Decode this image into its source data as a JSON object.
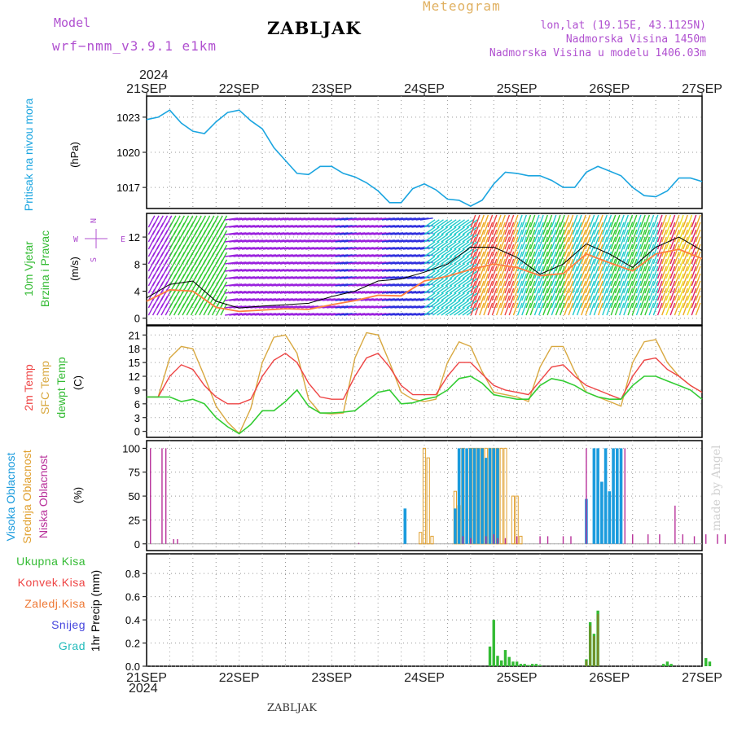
{
  "header": {
    "model_label": "Model",
    "model_name": "wrf−nmm_v3.9.1  e1km",
    "title": "Meteogram",
    "station": "ZABLJAK",
    "coords": "lon,lat (19.15E, 43.1125N)",
    "elevation": "Nadmorska Visina 1450m",
    "model_elevation": "Nadmorska Visina u modelu 1406.03m",
    "year_top": "2024",
    "year_bottom": "2024"
  },
  "footer": {
    "station": "ZABLJAK",
    "credit": "made by Angel"
  },
  "colors": {
    "pressure": "#1ba5e0",
    "temp2m": "#ee4444",
    "sfc": "#d8a840",
    "dew": "#33cc33",
    "high_cloud": "#1a9bdd",
    "mid_cloud": "#e0a030",
    "low_cloud": "#b8309a",
    "precip_total": "#33bb33",
    "precip_conv": "#ee4444",
    "freezing": "#ee7733",
    "snow": "#4444dd",
    "hail": "#22bbbb",
    "wind_speed": "#ff7f3f",
    "gust": "#000000",
    "axis_label": "#000000"
  },
  "chart_data": [
    {
      "type": "line",
      "panel": "pressure",
      "ylabel": "Pritisak na nivou mora",
      "unit": "(hPa)",
      "yticks": [
        1017,
        1020,
        1023
      ],
      "ylim": [
        1015.2,
        1024.8
      ],
      "x_hours": [
        0,
        3,
        6,
        9,
        12,
        15,
        18,
        21,
        24,
        27,
        30,
        33,
        36,
        39,
        42,
        45,
        48,
        51,
        54,
        57,
        60,
        63,
        66,
        69,
        72,
        75,
        78,
        81,
        84,
        87,
        90,
        93,
        96,
        99,
        102,
        105,
        108,
        111,
        114,
        117,
        120,
        123,
        126,
        129,
        132,
        135,
        138,
        141,
        144
      ],
      "series": [
        {
          "key": "pressure",
          "values": [
            1022.8,
            1023.0,
            1023.6,
            1022.5,
            1021.8,
            1021.6,
            1022.6,
            1023.4,
            1023.6,
            1022.7,
            1022.0,
            1020.4,
            1019.3,
            1018.2,
            1018.1,
            1018.8,
            1018.8,
            1018.2,
            1017.9,
            1017.4,
            1016.7,
            1015.7,
            1015.7,
            1016.9,
            1017.3,
            1016.8,
            1016.0,
            1015.9,
            1015.4,
            1015.9,
            1017.3,
            1018.3,
            1018.2,
            1018.0,
            1018.0,
            1017.6,
            1017.0,
            1017.0,
            1018.3,
            1018.8,
            1018.4,
            1018.0,
            1017.0,
            1016.3,
            1016.2,
            1016.7,
            1017.8,
            1017.8,
            1017.5
          ]
        }
      ]
    },
    {
      "type": "barbs",
      "panel": "wind",
      "ylabel": "10m Vjetar Brzina i Pravac",
      "unit": "(m/s)",
      "compass": {
        "n": "N",
        "s": "S",
        "e": "E",
        "w": "W"
      },
      "yticks": [
        0,
        4,
        8,
        12
      ],
      "ylim": [
        -1,
        15.5
      ],
      "x_hours": [
        0,
        6,
        12,
        18,
        24,
        30,
        36,
        42,
        48,
        54,
        60,
        66,
        72,
        78,
        84,
        90,
        96,
        102,
        108,
        114,
        120,
        126,
        132,
        138,
        144
      ],
      "series": [
        {
          "key": "wind_speed",
          "values": [
            2.5,
            4.2,
            4.0,
            1.6,
            1.0,
            1.2,
            1.4,
            1.3,
            2.0,
            2.6,
            3.4,
            3.3,
            5.5,
            6.2,
            7.2,
            8.0,
            7.5,
            6.3,
            6.6,
            9.5,
            8.2,
            7.0,
            9.5,
            10.2,
            8.8
          ]
        },
        {
          "key": "gust",
          "values": [
            3.0,
            5.0,
            5.5,
            2.5,
            1.5,
            1.8,
            2.0,
            2.2,
            3.2,
            4.0,
            5.5,
            5.8,
            6.8,
            8.0,
            10.5,
            10.5,
            9.0,
            6.5,
            8.0,
            11.0,
            9.5,
            7.5,
            10.5,
            12.0,
            10.0
          ]
        }
      ],
      "barb_bands": [
        "#9a22dd",
        "#3030dd",
        "#22aa66",
        "#22cccc",
        "#33cc33",
        "#ee4444",
        "#ff8844",
        "#eeaa22",
        "#eedd22",
        "#dd2266"
      ]
    },
    {
      "type": "line",
      "panel": "temperature",
      "ylabels": [
        "2m Temp",
        "SFC Temp",
        "dewpt Temp"
      ],
      "unit": "(C)",
      "yticks": [
        0,
        3,
        6,
        9,
        12,
        15,
        18,
        21
      ],
      "ylim": [
        -1.3,
        23
      ],
      "x_hours": [
        0,
        3,
        6,
        9,
        12,
        15,
        18,
        21,
        24,
        27,
        30,
        33,
        36,
        39,
        42,
        45,
        48,
        51,
        54,
        57,
        60,
        63,
        66,
        69,
        72,
        75,
        78,
        81,
        84,
        87,
        90,
        93,
        96,
        99,
        102,
        105,
        108,
        111,
        114,
        117,
        120,
        123,
        126,
        129,
        132,
        135,
        138,
        141,
        144
      ],
      "series": [
        {
          "key": "temp2m",
          "values": [
            7.5,
            7.5,
            12.0,
            14.5,
            13.5,
            10.0,
            7.5,
            6.0,
            6.0,
            7.0,
            12.0,
            15.5,
            17.0,
            15.0,
            10.5,
            7.5,
            7.0,
            7.0,
            12.0,
            16.0,
            17.0,
            14.0,
            10.0,
            8.0,
            8.0,
            8.0,
            12.0,
            15.0,
            15.0,
            12.5,
            10.0,
            9.0,
            8.5,
            8.0,
            11.0,
            14.0,
            14.5,
            12.0,
            10.0,
            9.0,
            8.0,
            7.0,
            12.0,
            15.5,
            16.0,
            13.5,
            12.0,
            10.0,
            8.5
          ]
        },
        {
          "key": "sfc",
          "values": [
            7.5,
            7.5,
            16.0,
            18.5,
            18.0,
            12.0,
            5.5,
            2.0,
            -0.5,
            5.0,
            15.0,
            20.5,
            21.0,
            17.0,
            7.0,
            4.0,
            3.8,
            4.0,
            16.0,
            21.5,
            21.0,
            15.0,
            8.5,
            7.0,
            6.5,
            7.0,
            15.0,
            19.5,
            18.5,
            13.0,
            8.5,
            8.0,
            7.5,
            6.5,
            14.0,
            18.5,
            18.5,
            13.0,
            8.5,
            7.5,
            6.5,
            5.5,
            15.0,
            19.5,
            20.0,
            15.0,
            12.0,
            10.0,
            8.5
          ]
        },
        {
          "key": "dew",
          "values": [
            7.5,
            7.5,
            7.5,
            6.5,
            7.0,
            6.0,
            3.0,
            1.0,
            -0.5,
            1.5,
            4.5,
            4.5,
            6.5,
            9.0,
            5.5,
            4.0,
            4.0,
            4.2,
            4.5,
            6.5,
            8.5,
            9.0,
            6.0,
            6.2,
            7.0,
            7.5,
            9.0,
            11.5,
            12.0,
            10.5,
            8.0,
            7.5,
            7.0,
            7.0,
            10.0,
            11.5,
            11.0,
            10.0,
            8.5,
            7.5,
            7.0,
            7.0,
            10.0,
            12.0,
            12.0,
            11.0,
            10.0,
            9.0,
            7.0
          ]
        }
      ]
    },
    {
      "type": "bar",
      "panel": "clouds",
      "ylabels": [
        "Visoka Oblacnost",
        "Srednja Oblacnost",
        "Niska Oblacnost"
      ],
      "unit": "(%)",
      "yticks": [
        0,
        25,
        50,
        75,
        100
      ],
      "ylim": [
        -7,
        108
      ],
      "series": [
        {
          "key": "low_cloud",
          "x": [
            1,
            4,
            5,
            7,
            8,
            55,
            82,
            84,
            88,
            90,
            91,
            93,
            96,
            102,
            104,
            108,
            110,
            114,
            124,
            126,
            130,
            133,
            137,
            139,
            142,
            145,
            148,
            150,
            153,
            156
          ],
          "values": [
            100,
            100,
            100,
            5,
            5,
            1,
            8,
            6,
            8,
            10,
            6,
            6,
            8,
            8,
            8,
            8,
            8,
            100,
            100,
            10,
            10,
            10,
            40,
            10,
            8,
            10,
            10,
            10,
            10,
            10
          ]
        },
        {
          "key": "mid_cloud",
          "x": [
            71,
            72,
            73,
            74,
            80,
            81,
            82,
            84,
            85,
            86,
            87,
            88,
            89,
            90,
            91,
            92,
            93,
            95,
            96,
            97
          ],
          "values": [
            12,
            100,
            90,
            8,
            55,
            40,
            100,
            100,
            100,
            100,
            100,
            100,
            100,
            100,
            100,
            100,
            100,
            50,
            50,
            8
          ]
        },
        {
          "key": "high_cloud",
          "x": [
            67,
            80,
            81,
            82,
            83,
            84,
            85,
            86,
            87,
            88,
            89,
            90,
            91,
            114,
            116,
            117,
            118,
            119,
            120,
            121,
            122,
            123
          ],
          "values": [
            37,
            37,
            100,
            100,
            100,
            100,
            100,
            100,
            100,
            90,
            100,
            100,
            100,
            47,
            100,
            100,
            65,
            100,
            55,
            100,
            100,
            100
          ]
        }
      ]
    },
    {
      "type": "bar",
      "panel": "precip",
      "ylabels": [
        "Ukupna Kisa",
        "Konvek.Kisa",
        "Zaledj.Kisa",
        "Snijeg",
        "Grad"
      ],
      "ylabel": "1hr Precip",
      "unit": "(mm)",
      "yticks": [
        0,
        0.2,
        0.4,
        0.6,
        0.8
      ],
      "ylim": [
        0,
        0.97
      ],
      "series": [
        {
          "key": "precip_total",
          "x": [
            89,
            90,
            91,
            92,
            93,
            94,
            95,
            96,
            97,
            98,
            99,
            100,
            101,
            102,
            114,
            115,
            116,
            117,
            134,
            135,
            136,
            145,
            146
          ],
          "values": [
            0.17,
            0.4,
            0.09,
            0.05,
            0.14,
            0.08,
            0.04,
            0.04,
            0.02,
            0.02,
            0.01,
            0.02,
            0.02,
            0.01,
            0.06,
            0.38,
            0.28,
            0.48,
            0.02,
            0.04,
            0.02,
            0.07,
            0.04
          ]
        },
        {
          "key": "precip_conv",
          "x": [
            114,
            115,
            116,
            117
          ],
          "values": [
            0.05,
            0.35,
            0.26,
            0.45
          ]
        }
      ]
    }
  ],
  "x_axis": {
    "labels": [
      "21SEP",
      "22SEP",
      "23SEP",
      "24SEP",
      "25SEP",
      "26SEP",
      "27SEP"
    ],
    "hours": [
      0,
      24,
      48,
      72,
      96,
      120,
      144
    ]
  }
}
